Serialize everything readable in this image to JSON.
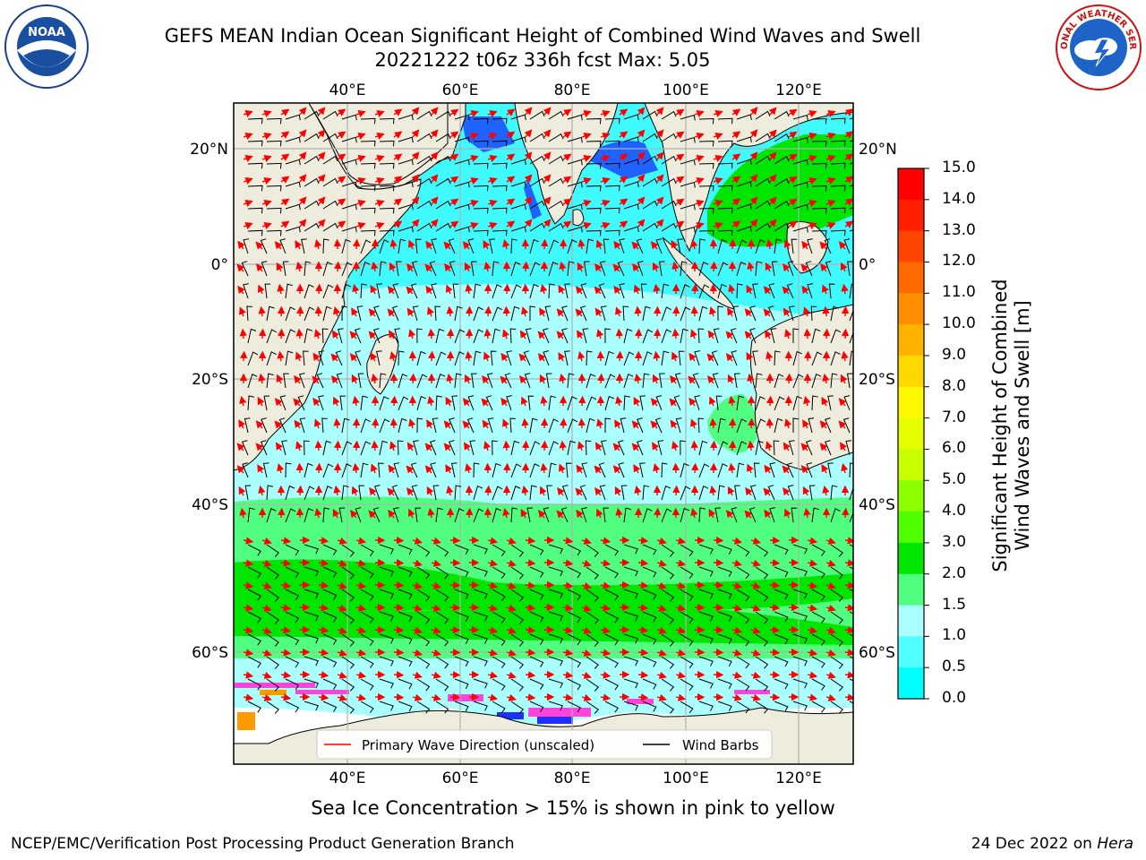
{
  "title": {
    "line1": "GEFS MEAN Indian Ocean Significant Height of Combined Wind Waves and Swell",
    "line2": "20221222 t06z 336h fcst   Max: 5.05"
  },
  "logos": {
    "left": {
      "icon": "noaa-logo",
      "label": "NOAA"
    },
    "right": {
      "icon": "nws-logo",
      "label": "NATIONAL WEATHER SERVICE"
    }
  },
  "map": {
    "lon_labels_top": [
      "40°E",
      "60°E",
      "80°E",
      "100°E",
      "120°E"
    ],
    "lon_labels_bottom": [
      "40°E",
      "60°E",
      "80°E",
      "100°E",
      "120°E"
    ],
    "lat_labels_left": [
      "20°N",
      "0°",
      "20°S",
      "40°S",
      "60°S"
    ],
    "lat_labels_right": [
      "20°N",
      "0°",
      "20°S",
      "40°S",
      "60°S"
    ],
    "legend": {
      "wave_direction": "Primary Wave Direction (unscaled)",
      "wind_barbs": "Wind Barbs"
    },
    "colors": {
      "land": "#eeecdc",
      "ice_free": "#ffffff",
      "swell_low": "#00ffff",
      "swell_mid": "#aaffff",
      "swell_high": "#50ff80",
      "swell_max": "#00e600",
      "arrow": "#ff0000",
      "barb": "#000000"
    }
  },
  "colorbar": {
    "title_line1": "Significant Height of Combined",
    "title_line2": "Wind Waves and Swell [m]",
    "ticks": [
      "15.0",
      "14.0",
      "13.0",
      "12.0",
      "11.0",
      "10.0",
      "9.0",
      "8.0",
      "7.0",
      "6.0",
      "5.0",
      "4.0",
      "3.0",
      "2.0",
      "1.5",
      "1.0",
      "0.5",
      "0.0"
    ],
    "colors": [
      "#ff0000",
      "#ff2000",
      "#ff4500",
      "#ff6a00",
      "#ff8f00",
      "#ffb300",
      "#ffd800",
      "#fff900",
      "#e6ff00",
      "#c8ff00",
      "#8cff00",
      "#50ff00",
      "#00e600",
      "#50ff80",
      "#aaffff",
      "#50ffff",
      "#00ffff",
      "#0080ff",
      "#0000ff"
    ]
  },
  "caption": "Sea Ice Concentration > 15% is shown in pink to yellow",
  "footer": {
    "left": "NCEP/EMC/Verification Post Processing Product Generation Branch",
    "right_date": "24 Dec 2022 on ",
    "right_host": "Hera"
  }
}
